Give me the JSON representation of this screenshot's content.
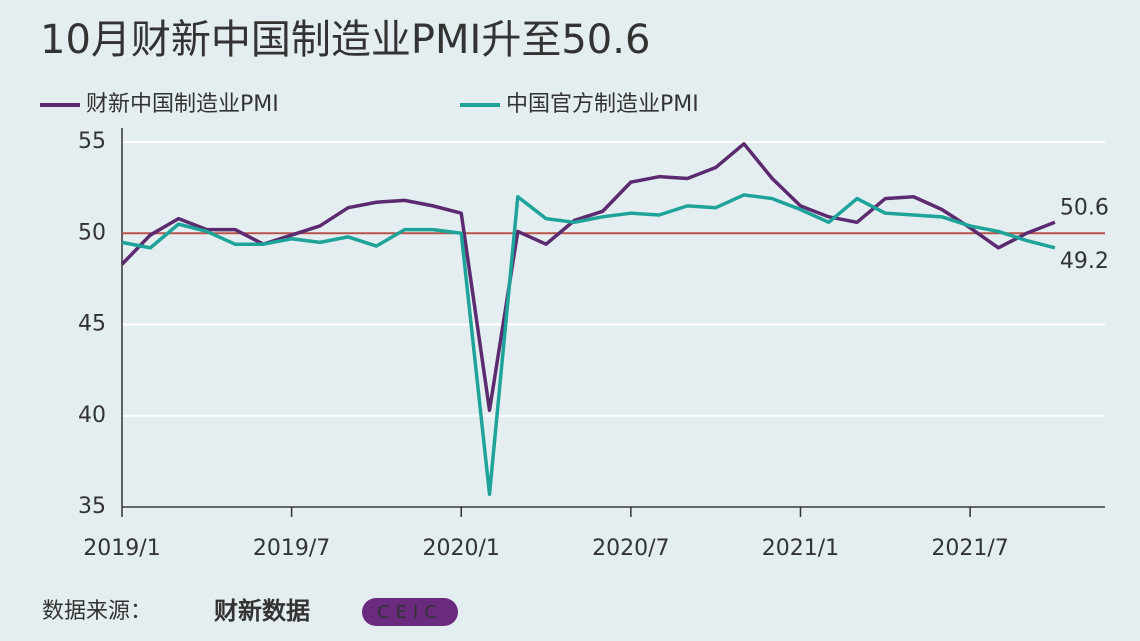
{
  "chart_data": {
    "type": "line",
    "title": "10月财新中国制造业PMI升至50.6",
    "categories": [
      "2019/1",
      null,
      null,
      null,
      null,
      null,
      "2019/7",
      null,
      null,
      null,
      null,
      null,
      "2020/1",
      null,
      null,
      null,
      null,
      null,
      "2020/7",
      null,
      null,
      null,
      null,
      null,
      "2021/1",
      null,
      null,
      null,
      null,
      null,
      "2021/7",
      null,
      null,
      null
    ],
    "series": [
      {
        "name": "财新中国制造业PMI",
        "color": "#5c2a6e",
        "values": [
          48.3,
          49.9,
          50.8,
          50.2,
          50.2,
          49.4,
          49.9,
          50.4,
          51.4,
          51.7,
          51.8,
          51.5,
          51.1,
          40.3,
          50.1,
          49.4,
          50.7,
          51.2,
          52.8,
          53.1,
          53.0,
          53.6,
          54.9,
          53.0,
          51.5,
          50.9,
          50.6,
          51.9,
          52.0,
          51.3,
          50.3,
          49.2,
          50.0,
          50.6
        ]
      },
      {
        "name": "中国官方制造业PMI",
        "color": "#1ea39a",
        "values": [
          49.5,
          49.2,
          50.5,
          50.1,
          49.4,
          49.4,
          49.7,
          49.5,
          49.8,
          49.3,
          50.2,
          50.2,
          50.0,
          35.7,
          52.0,
          50.8,
          50.6,
          50.9,
          51.1,
          51.0,
          51.5,
          51.4,
          52.1,
          51.9,
          51.3,
          50.6,
          51.9,
          51.1,
          51.0,
          50.9,
          50.4,
          50.1,
          49.6,
          49.2
        ]
      }
    ],
    "hline": {
      "value": 50,
      "color": "#b5524a"
    },
    "ylim": [
      35,
      55
    ],
    "yticks": [
      35,
      40,
      45,
      50,
      55
    ],
    "grid": true,
    "source": "数据来源：",
    "source_logos": [
      "财新数据",
      "CEIC"
    ]
  }
}
